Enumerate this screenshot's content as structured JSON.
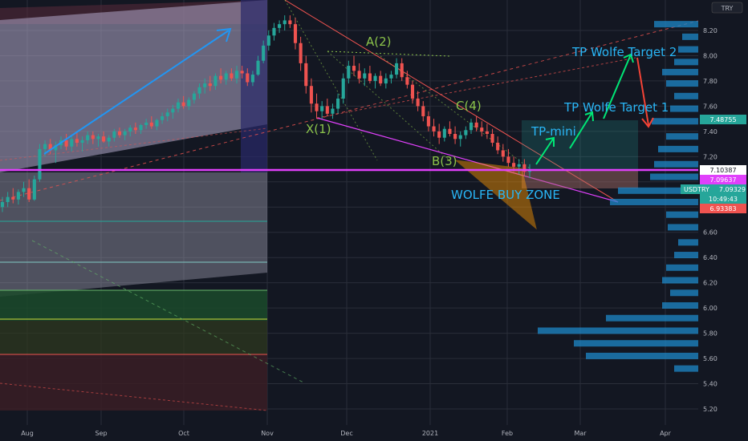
{
  "chart_data": {
    "type": "candlestick",
    "title": "",
    "currency": "TRY",
    "ylim": [
      5.1,
      8.3
    ],
    "y_ticks": [
      5.2,
      5.4,
      5.6,
      5.8,
      6.0,
      6.2,
      6.4,
      6.6,
      6.8,
      7.0,
      7.2,
      7.4,
      7.6,
      7.8,
      8.0,
      8.2
    ],
    "x_ticks": [
      "Aug",
      "Sep",
      "Oct",
      "Nov",
      "Dec",
      "2021",
      "Feb",
      "Mar",
      "Apr"
    ],
    "price_labels": [
      {
        "value": "7.48755",
        "color": "#26a69a"
      },
      {
        "value": "7.10387",
        "color": "#ffffff"
      },
      {
        "value": "7.09637",
        "color": "#e040fb"
      },
      {
        "value": "7.09329",
        "color": "#26a69a"
      },
      {
        "value": "6.93383",
        "color": "#ef5350"
      }
    ],
    "symbol_tag": "USDTRY",
    "countdown": "10:49:43",
    "annotations": [
      {
        "text": "A(2)",
        "color": "#8bc34a"
      },
      {
        "text": "X(1)",
        "color": "#8bc34a"
      },
      {
        "text": "C(4)",
        "color": "#8bc34a"
      },
      {
        "text": "B(3)",
        "color": "#8bc34a"
      },
      {
        "text": "WOLFE BUY ZONE",
        "color": "#29b6f6"
      },
      {
        "text": "TP-mini",
        "color": "#29b6f6"
      },
      {
        "text": "TP Wolfe Target 1",
        "color": "#29b6f6"
      },
      {
        "text": "TP Wolfe Target 2",
        "color": "#29b6f6"
      }
    ],
    "ohlc": [
      [
        6.8,
        6.88,
        6.76,
        6.84
      ],
      [
        6.84,
        6.92,
        6.8,
        6.88
      ],
      [
        6.88,
        6.95,
        6.83,
        6.86
      ],
      [
        6.86,
        6.94,
        6.82,
        6.92
      ],
      [
        6.92,
        7.0,
        6.88,
        6.95
      ],
      [
        6.95,
        7.02,
        6.84,
        6.86
      ],
      [
        6.86,
        7.05,
        6.85,
        7.02
      ],
      [
        7.02,
        7.3,
        7.0,
        7.26
      ],
      [
        7.26,
        7.33,
        7.2,
        7.3
      ],
      [
        7.3,
        7.34,
        7.22,
        7.25
      ],
      [
        7.25,
        7.32,
        7.15,
        7.29
      ],
      [
        7.29,
        7.36,
        7.26,
        7.33
      ],
      [
        7.33,
        7.38,
        7.25,
        7.28
      ],
      [
        7.28,
        7.36,
        7.24,
        7.34
      ],
      [
        7.34,
        7.39,
        7.28,
        7.31
      ],
      [
        7.31,
        7.36,
        7.24,
        7.33
      ],
      [
        7.33,
        7.4,
        7.3,
        7.37
      ],
      [
        7.37,
        7.4,
        7.3,
        7.34
      ],
      [
        7.34,
        7.38,
        7.28,
        7.36
      ],
      [
        7.36,
        7.4,
        7.31,
        7.32
      ],
      [
        7.32,
        7.37,
        7.28,
        7.35
      ],
      [
        7.35,
        7.42,
        7.32,
        7.4
      ],
      [
        7.4,
        7.43,
        7.35,
        7.37
      ],
      [
        7.37,
        7.42,
        7.33,
        7.4
      ],
      [
        7.4,
        7.45,
        7.36,
        7.43
      ],
      [
        7.43,
        7.47,
        7.38,
        7.41
      ],
      [
        7.41,
        7.46,
        7.38,
        7.45
      ],
      [
        7.45,
        7.5,
        7.42,
        7.47
      ],
      [
        7.47,
        7.52,
        7.42,
        7.44
      ],
      [
        7.44,
        7.5,
        7.41,
        7.49
      ],
      [
        7.49,
        7.55,
        7.46,
        7.52
      ],
      [
        7.52,
        7.58,
        7.48,
        7.55
      ],
      [
        7.55,
        7.61,
        7.5,
        7.58
      ],
      [
        7.58,
        7.66,
        7.55,
        7.63
      ],
      [
        7.63,
        7.68,
        7.58,
        7.6
      ],
      [
        7.6,
        7.67,
        7.57,
        7.65
      ],
      [
        7.65,
        7.72,
        7.62,
        7.7
      ],
      [
        7.7,
        7.78,
        7.66,
        7.75
      ],
      [
        7.75,
        7.82,
        7.7,
        7.78
      ],
      [
        7.78,
        7.84,
        7.72,
        7.76
      ],
      [
        7.76,
        7.86,
        7.73,
        7.84
      ],
      [
        7.84,
        7.9,
        7.78,
        7.81
      ],
      [
        7.81,
        7.88,
        7.77,
        7.86
      ],
      [
        7.86,
        7.9,
        7.8,
        7.82
      ],
      [
        7.82,
        7.92,
        7.78,
        7.88
      ],
      [
        7.88,
        7.92,
        7.82,
        7.86
      ],
      [
        7.86,
        7.9,
        7.76,
        7.79
      ],
      [
        7.79,
        7.88,
        7.76,
        7.85
      ],
      [
        7.85,
        8.0,
        7.84,
        7.96
      ],
      [
        7.96,
        8.12,
        7.94,
        8.08
      ],
      [
        8.08,
        8.2,
        8.04,
        8.16
      ],
      [
        8.16,
        8.26,
        8.12,
        8.22
      ],
      [
        8.22,
        8.28,
        8.18,
        8.25
      ],
      [
        8.25,
        8.32,
        8.2,
        8.28
      ],
      [
        8.28,
        8.32,
        8.22,
        8.25
      ],
      [
        8.25,
        8.3,
        8.05,
        8.1
      ],
      [
        8.1,
        8.15,
        7.88,
        7.94
      ],
      [
        7.94,
        8.0,
        7.7,
        7.76
      ],
      [
        7.76,
        7.82,
        7.55,
        7.62
      ],
      [
        7.62,
        7.7,
        7.5,
        7.56
      ],
      [
        7.56,
        7.64,
        7.5,
        7.6
      ],
      [
        7.6,
        7.66,
        7.52,
        7.54
      ],
      [
        7.54,
        7.62,
        7.5,
        7.58
      ],
      [
        7.58,
        7.7,
        7.54,
        7.66
      ],
      [
        7.66,
        7.86,
        7.62,
        7.82
      ],
      [
        7.82,
        7.96,
        7.78,
        7.92
      ],
      [
        7.92,
        8.0,
        7.84,
        7.88
      ],
      [
        7.88,
        7.94,
        7.78,
        7.82
      ],
      [
        7.82,
        7.9,
        7.76,
        7.86
      ],
      [
        7.86,
        7.92,
        7.78,
        7.8
      ],
      [
        7.8,
        7.86,
        7.74,
        7.84
      ],
      [
        7.84,
        7.88,
        7.76,
        7.78
      ],
      [
        7.78,
        7.86,
        7.74,
        7.82
      ],
      [
        7.82,
        7.88,
        7.78,
        7.85
      ],
      [
        7.85,
        7.98,
        7.82,
        7.94
      ],
      [
        7.94,
        7.98,
        7.8,
        7.83
      ],
      [
        7.83,
        7.88,
        7.74,
        7.77
      ],
      [
        7.77,
        7.8,
        7.62,
        7.66
      ],
      [
        7.66,
        7.72,
        7.56,
        7.6
      ],
      [
        7.6,
        7.64,
        7.48,
        7.52
      ],
      [
        7.52,
        7.56,
        7.4,
        7.44
      ],
      [
        7.44,
        7.5,
        7.36,
        7.4
      ],
      [
        7.4,
        7.46,
        7.3,
        7.35
      ],
      [
        7.35,
        7.44,
        7.32,
        7.42
      ],
      [
        7.42,
        7.48,
        7.36,
        7.38
      ],
      [
        7.38,
        7.44,
        7.3,
        7.34
      ],
      [
        7.34,
        7.4,
        7.28,
        7.37
      ],
      [
        7.37,
        7.44,
        7.34,
        7.41
      ],
      [
        7.41,
        7.5,
        7.38,
        7.47
      ],
      [
        7.47,
        7.52,
        7.4,
        7.43
      ],
      [
        7.43,
        7.48,
        7.36,
        7.4
      ],
      [
        7.4,
        7.46,
        7.34,
        7.38
      ],
      [
        7.38,
        7.42,
        7.28,
        7.31
      ],
      [
        7.31,
        7.36,
        7.22,
        7.25
      ],
      [
        7.25,
        7.3,
        7.16,
        7.2
      ],
      [
        7.2,
        7.26,
        7.12,
        7.15
      ],
      [
        7.15,
        7.2,
        7.08,
        7.12
      ],
      [
        7.12,
        7.18,
        7.06,
        7.14
      ],
      [
        7.14,
        7.18,
        7.05,
        7.08
      ],
      [
        7.08,
        7.14,
        7.03,
        7.1
      ]
    ]
  }
}
